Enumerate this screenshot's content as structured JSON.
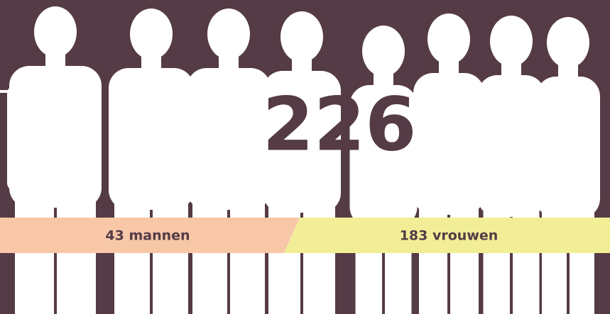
{
  "total": "226",
  "groups": [
    {
      "label": "43 mannen"
    },
    {
      "label": "183 vrouwen"
    }
  ]
}
